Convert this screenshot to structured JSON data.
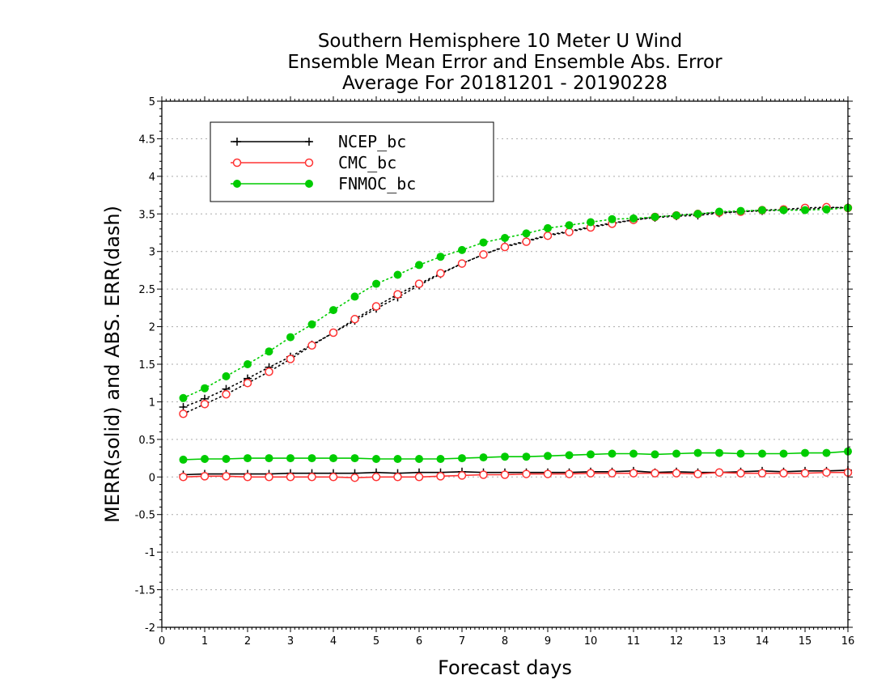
{
  "chart_data": {
    "type": "line",
    "title_lines": [
      "Southern Hemisphere 10 Meter U Wind",
      "Ensemble Mean Error and Ensemble Abs. Error",
      "Average For 20181201 - 20190228"
    ],
    "xlabel": "Forecast days",
    "ylabel": "MERR(solid) and ABS. ERR(dash)",
    "xlim": [
      0,
      16
    ],
    "ylim": [
      -2,
      5
    ],
    "x_ticks": [
      "0",
      "1",
      "2",
      "3",
      "4",
      "5",
      "6",
      "7",
      "8",
      "9",
      "10",
      "11",
      "12",
      "13",
      "14",
      "15",
      "16"
    ],
    "y_ticks": [
      "-2",
      "-1.5",
      "-1",
      "-0.5",
      "0",
      "0.5",
      "1",
      "1.5",
      "2",
      "2.5",
      "3",
      "3.5",
      "4",
      "4.5",
      "5"
    ],
    "grid": "horizontal dotted",
    "legend_position": "top-left",
    "x": [
      0.5,
      1,
      1.5,
      2,
      2.5,
      3,
      3.5,
      4,
      4.5,
      5,
      5.5,
      6,
      6.5,
      7,
      7.5,
      8,
      8.5,
      9,
      9.5,
      10,
      10.5,
      11,
      11.5,
      12,
      12.5,
      13,
      13.5,
      14,
      14.5,
      15,
      15.5,
      16
    ],
    "series": [
      {
        "name": "NCEP_bc",
        "color": "#000000",
        "marker": "plus",
        "abs_err": [
          0.93,
          1.04,
          1.17,
          1.31,
          1.46,
          1.6,
          1.76,
          1.92,
          2.08,
          2.24,
          2.39,
          2.55,
          2.7,
          2.84,
          2.96,
          3.07,
          3.14,
          3.22,
          3.27,
          3.33,
          3.38,
          3.42,
          3.45,
          3.47,
          3.48,
          3.51,
          3.53,
          3.54,
          3.55,
          3.56,
          3.58,
          3.59
        ],
        "mean_err": [
          0.03,
          0.04,
          0.04,
          0.04,
          0.04,
          0.05,
          0.05,
          0.05,
          0.05,
          0.06,
          0.05,
          0.06,
          0.06,
          0.07,
          0.06,
          0.06,
          0.06,
          0.06,
          0.06,
          0.07,
          0.07,
          0.08,
          0.06,
          0.07,
          0.06,
          0.06,
          0.07,
          0.08,
          0.07,
          0.08,
          0.08,
          0.09
        ]
      },
      {
        "name": "CMC_bc",
        "color": "#ff3333",
        "marker": "open-circle",
        "abs_err": [
          0.84,
          0.97,
          1.1,
          1.25,
          1.4,
          1.57,
          1.75,
          1.92,
          2.1,
          2.27,
          2.43,
          2.57,
          2.71,
          2.84,
          2.96,
          3.06,
          3.13,
          3.21,
          3.26,
          3.32,
          3.37,
          3.42,
          3.46,
          3.48,
          3.5,
          3.52,
          3.53,
          3.55,
          3.56,
          3.58,
          3.59,
          3.58
        ],
        "mean_err": [
          0.0,
          0.01,
          0.01,
          0.0,
          0.0,
          0.0,
          0.0,
          0.0,
          -0.01,
          0.0,
          0.0,
          0.0,
          0.01,
          0.02,
          0.03,
          0.03,
          0.04,
          0.04,
          0.04,
          0.05,
          0.05,
          0.05,
          0.05,
          0.05,
          0.04,
          0.06,
          0.05,
          0.05,
          0.05,
          0.05,
          0.06,
          0.06
        ]
      },
      {
        "name": "FNMOC_bc",
        "color": "#00cc00",
        "marker": "filled-circle",
        "abs_err": [
          1.05,
          1.18,
          1.34,
          1.5,
          1.67,
          1.86,
          2.03,
          2.22,
          2.4,
          2.57,
          2.69,
          2.82,
          2.93,
          3.02,
          3.12,
          3.18,
          3.24,
          3.31,
          3.35,
          3.39,
          3.43,
          3.44,
          3.46,
          3.48,
          3.5,
          3.53,
          3.54,
          3.55,
          3.55,
          3.55,
          3.56,
          3.58
        ],
        "mean_err": [
          0.23,
          0.24,
          0.24,
          0.25,
          0.25,
          0.25,
          0.25,
          0.25,
          0.25,
          0.24,
          0.24,
          0.24,
          0.24,
          0.25,
          0.26,
          0.27,
          0.27,
          0.28,
          0.29,
          0.3,
          0.31,
          0.31,
          0.3,
          0.31,
          0.32,
          0.32,
          0.31,
          0.31,
          0.31,
          0.32,
          0.32,
          0.34
        ]
      }
    ]
  }
}
